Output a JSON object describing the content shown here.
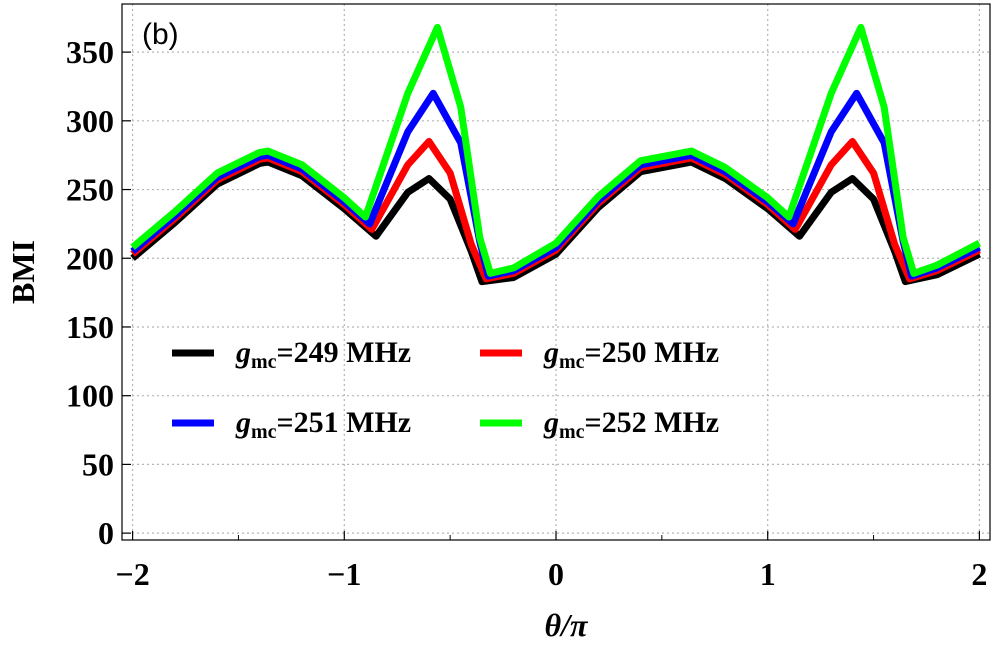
{
  "chart_data": {
    "type": "line",
    "panel_label": "(b)",
    "xlabel": "θ/π",
    "ylabel": "BMI",
    "xlim": [
      -2.05,
      2.05
    ],
    "ylim": [
      -5,
      385
    ],
    "x_ticks": [
      -2,
      -1,
      0,
      1,
      2
    ],
    "x_tick_labels": [
      "−2",
      "−1",
      "0",
      "1",
      "2"
    ],
    "y_ticks": [
      0,
      50,
      100,
      150,
      200,
      250,
      300,
      350
    ],
    "y_tick_labels": [
      "0",
      "50",
      "100",
      "150",
      "200",
      "250",
      "300",
      "350"
    ],
    "grid": true,
    "legend_position": "center-left",
    "legend_prefix": "g",
    "legend_subscript": "mc",
    "series": [
      {
        "name": "g_mc=249 MHz",
        "label_value": "=249 MHz",
        "color": "#000000",
        "x": [
          -2,
          -1.8,
          -1.6,
          -1.4,
          -1.36,
          -1.2,
          -1.0,
          -0.85,
          -0.7,
          -0.6,
          -0.5,
          -0.4,
          -0.35,
          -0.2,
          0,
          0.2,
          0.4,
          0.64,
          0.8,
          1.0,
          1.15,
          1.3,
          1.4,
          1.5,
          1.6,
          1.65,
          1.8,
          2.0
        ],
        "y": [
          200,
          226,
          254,
          269,
          270,
          260,
          236,
          216,
          248,
          258,
          243,
          205,
          183,
          186,
          203,
          237,
          263,
          270,
          258,
          236,
          216,
          248,
          258,
          243,
          205,
          183,
          188,
          203
        ]
      },
      {
        "name": "g_mc=250 MHz",
        "label_value": "=250 MHz",
        "color": "#ff0000",
        "x": [
          -2,
          -1.8,
          -1.6,
          -1.4,
          -1.36,
          -1.2,
          -1.0,
          -0.87,
          -0.7,
          -0.6,
          -0.5,
          -0.4,
          -0.33,
          -0.2,
          0,
          0.2,
          0.4,
          0.64,
          0.8,
          1.0,
          1.13,
          1.3,
          1.4,
          1.5,
          1.6,
          1.67,
          1.8,
          2.0
        ],
        "y": [
          203,
          229,
          257,
          272,
          273,
          263,
          239,
          221,
          268,
          285,
          262,
          210,
          185,
          189,
          206,
          240,
          266,
          273,
          261,
          239,
          221,
          268,
          285,
          262,
          210,
          185,
          191,
          206
        ]
      },
      {
        "name": "g_mc=251 MHz",
        "label_value": "=251 MHz",
        "color": "#0000ff",
        "x": [
          -2,
          -1.8,
          -1.6,
          -1.4,
          -1.36,
          -1.2,
          -1.0,
          -0.88,
          -0.7,
          -0.58,
          -0.45,
          -0.36,
          -0.32,
          -0.2,
          0,
          0.2,
          0.4,
          0.64,
          0.8,
          1.0,
          1.12,
          1.3,
          1.42,
          1.55,
          1.64,
          1.68,
          1.8,
          2.0
        ],
        "y": [
          205,
          231,
          259,
          274,
          275,
          265,
          241,
          225,
          292,
          320,
          284,
          212,
          187,
          191,
          208,
          242,
          268,
          275,
          263,
          241,
          225,
          292,
          320,
          284,
          212,
          187,
          193,
          208
        ]
      },
      {
        "name": "g_mc=252 MHz",
        "label_value": "=252 MHz",
        "color": "#00ff00",
        "x": [
          -2,
          -1.8,
          -1.6,
          -1.4,
          -1.36,
          -1.2,
          -1.0,
          -0.9,
          -0.7,
          -0.56,
          -0.45,
          -0.36,
          -0.31,
          -0.2,
          0,
          0.2,
          0.4,
          0.64,
          0.8,
          1.0,
          1.1,
          1.3,
          1.44,
          1.55,
          1.64,
          1.69,
          1.8,
          2.0
        ],
        "y": [
          208,
          234,
          262,
          277,
          278,
          268,
          244,
          230,
          320,
          368,
          310,
          215,
          189,
          193,
          211,
          245,
          271,
          278,
          266,
          244,
          230,
          320,
          368,
          310,
          215,
          189,
          195,
          211
        ]
      }
    ]
  }
}
